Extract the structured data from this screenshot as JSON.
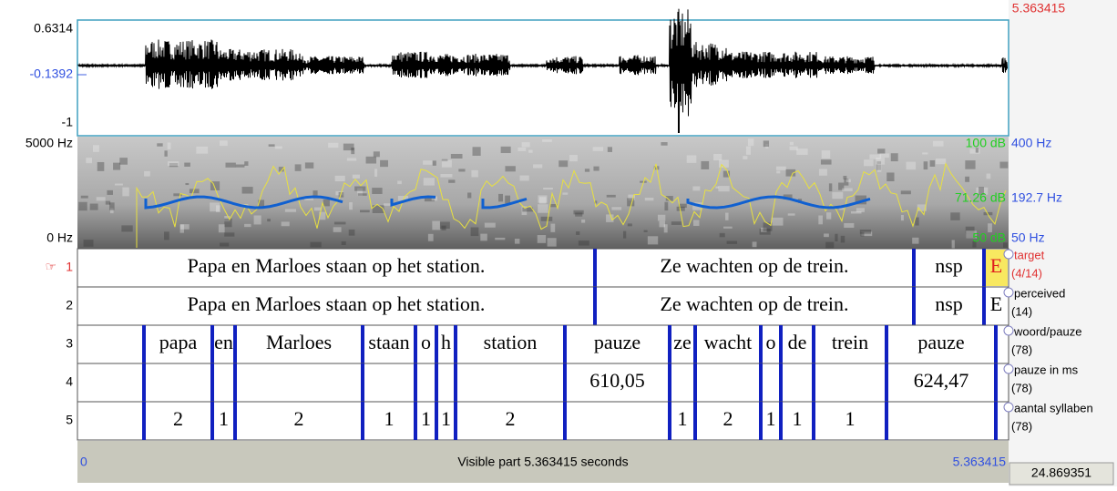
{
  "header": {
    "top_time": "5.363415"
  },
  "waveform": {
    "max": "0.6314",
    "cursor": "-0.1392",
    "min": "-1"
  },
  "spectrogram": {
    "freq_max": "5000 Hz",
    "freq_min": "0 Hz",
    "db_max": "100 dB",
    "db_mid": "71.26 dB",
    "db_min": "50 dB",
    "pitch_max": "400 Hz",
    "pitch_mid": "192.7 Hz",
    "pitch_min": "50 Hz"
  },
  "tiers": [
    {
      "marker": "☞",
      "number": "1",
      "name": "target",
      "count": "(4/14)",
      "intervals": [
        "Papa en Marloes staan op het station.",
        "Ze wachten op de trein.",
        "nsp",
        "E"
      ]
    },
    {
      "number": "2",
      "name": "perceived",
      "count": "(14)",
      "intervals": [
        "Papa en Marloes staan op het station.",
        "Ze wachten op de trein.",
        "nsp",
        "E"
      ]
    },
    {
      "number": "3",
      "name": "woord/pauze",
      "count": "(78)",
      "intervals": [
        null,
        "papa",
        "en",
        "Marloes",
        "staan",
        "o",
        "h",
        "station",
        "pauze",
        "ze",
        "wacht",
        "o",
        "de",
        "trein",
        "pauze",
        null
      ]
    },
    {
      "number": "4",
      "name": "pauze in ms",
      "count": "(78)",
      "intervals": [
        null,
        null,
        null,
        null,
        null,
        null,
        null,
        null,
        "610,05",
        null,
        null,
        null,
        null,
        null,
        "624,47",
        null
      ]
    },
    {
      "number": "5",
      "name": "aantal syllaben",
      "count": "(78)",
      "intervals": [
        null,
        "2",
        "1",
        "2",
        "1",
        "1",
        "1",
        "2",
        null,
        "1",
        "2",
        "1",
        "1",
        "1",
        null,
        null
      ]
    }
  ],
  "footer": {
    "start": "0",
    "visible": "Visible part 5.363415 seconds",
    "end": "5.363415",
    "total": "24.869351"
  }
}
